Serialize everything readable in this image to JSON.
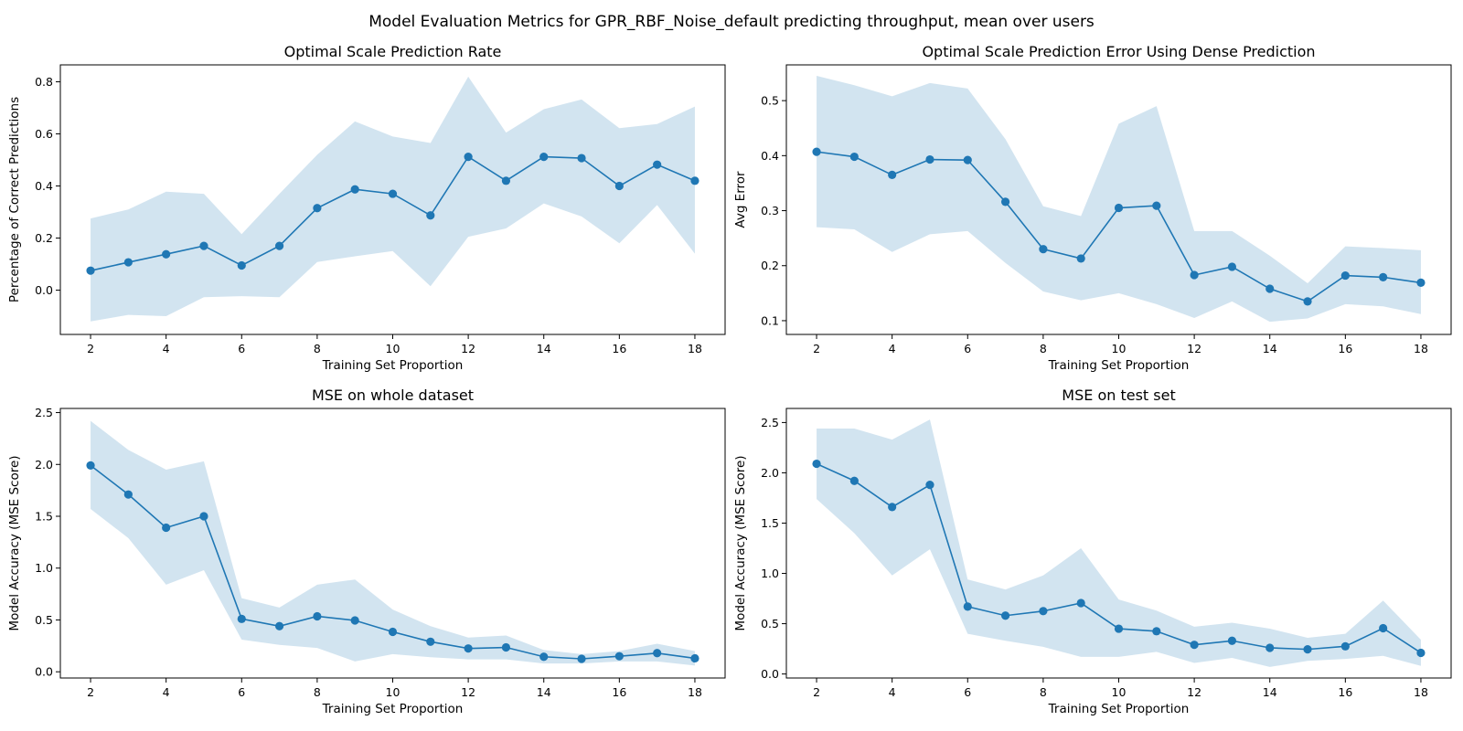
{
  "figure": {
    "suptitle": "Model Evaluation Metrics for GPR_RBF_Noise_default predicting throughput, mean over users"
  },
  "style": {
    "line_color": "#1f77b4",
    "band_color": "#1f77b4",
    "band_opacity": 0.2,
    "axis_color": "#000000"
  },
  "chart_data": [
    {
      "type": "line",
      "title": "Optimal Scale Prediction Rate",
      "xlabel": "Training Set Proportion",
      "ylabel": "Percentage of Correct Predictions",
      "x": [
        2,
        3,
        4,
        5,
        6,
        7,
        8,
        9,
        10,
        11,
        12,
        13,
        14,
        15,
        16,
        17,
        18
      ],
      "y": [
        0.075,
        0.107,
        0.138,
        0.17,
        0.095,
        0.17,
        0.315,
        0.387,
        0.37,
        0.287,
        0.512,
        0.42,
        0.512,
        0.507,
        0.4,
        0.482,
        0.42
      ],
      "upper": [
        0.275,
        0.31,
        0.378,
        0.37,
        0.215,
        0.37,
        0.52,
        0.648,
        0.59,
        0.565,
        0.82,
        0.605,
        0.695,
        0.732,
        0.622,
        0.638,
        0.705
      ],
      "lower": [
        -0.12,
        -0.095,
        -0.1,
        -0.027,
        -0.023,
        -0.027,
        0.108,
        0.13,
        0.15,
        0.015,
        0.205,
        0.237,
        0.333,
        0.283,
        0.18,
        0.327,
        0.14
      ],
      "xlim": [
        1.2,
        18.8
      ],
      "ylim": [
        -0.17,
        0.865
      ],
      "xticks": [
        2,
        4,
        6,
        8,
        10,
        12,
        14,
        16,
        18
      ],
      "xticklabels": [
        "2",
        "4",
        "6",
        "8",
        "10",
        "12",
        "14",
        "16",
        "18"
      ],
      "yticks": [
        0,
        0.2,
        0.4,
        0.6,
        0.8
      ],
      "yticklabels": [
        "0.0",
        "0.2",
        "0.4",
        "0.6",
        "0.8"
      ],
      "grid": false
    },
    {
      "type": "line",
      "title": "Optimal Scale Prediction Error Using Dense Prediction",
      "xlabel": "Training Set Proportion",
      "ylabel": "Avg Error",
      "x": [
        2,
        3,
        4,
        5,
        6,
        7,
        8,
        9,
        10,
        11,
        12,
        13,
        14,
        15,
        16,
        17,
        18
      ],
      "y": [
        0.407,
        0.398,
        0.365,
        0.393,
        0.392,
        0.316,
        0.23,
        0.213,
        0.305,
        0.309,
        0.183,
        0.198,
        0.158,
        0.135,
        0.182,
        0.179,
        0.169
      ],
      "upper": [
        0.545,
        0.528,
        0.508,
        0.532,
        0.522,
        0.43,
        0.308,
        0.29,
        0.458,
        0.49,
        0.263,
        0.263,
        0.218,
        0.168,
        0.235,
        0.232,
        0.228
      ],
      "lower": [
        0.27,
        0.266,
        0.225,
        0.257,
        0.263,
        0.205,
        0.153,
        0.137,
        0.15,
        0.13,
        0.105,
        0.135,
        0.098,
        0.104,
        0.13,
        0.126,
        0.112
      ],
      "xlim": [
        1.2,
        18.8
      ],
      "ylim": [
        0.075,
        0.565
      ],
      "xticks": [
        2,
        4,
        6,
        8,
        10,
        12,
        14,
        16,
        18
      ],
      "xticklabels": [
        "2",
        "4",
        "6",
        "8",
        "10",
        "12",
        "14",
        "16",
        "18"
      ],
      "yticks": [
        0.1,
        0.2,
        0.3,
        0.4,
        0.5
      ],
      "yticklabels": [
        "0.1",
        "0.2",
        "0.3",
        "0.4",
        "0.5"
      ],
      "grid": false
    },
    {
      "type": "line",
      "title": "MSE on whole dataset",
      "xlabel": "Training Set Proportion",
      "ylabel": "Model Accuracy (MSE Score)",
      "x": [
        2,
        3,
        4,
        5,
        6,
        7,
        8,
        9,
        10,
        11,
        12,
        13,
        14,
        15,
        16,
        17,
        18
      ],
      "y": [
        1.99,
        1.71,
        1.39,
        1.5,
        0.51,
        0.44,
        0.535,
        0.495,
        0.385,
        0.29,
        0.225,
        0.235,
        0.145,
        0.125,
        0.15,
        0.18,
        0.13
      ],
      "upper": [
        2.42,
        2.14,
        1.95,
        2.03,
        0.71,
        0.62,
        0.84,
        0.89,
        0.6,
        0.44,
        0.33,
        0.35,
        0.21,
        0.17,
        0.2,
        0.27,
        0.2
      ],
      "lower": [
        1.57,
        1.29,
        0.84,
        0.98,
        0.31,
        0.26,
        0.23,
        0.1,
        0.17,
        0.14,
        0.12,
        0.12,
        0.08,
        0.08,
        0.1,
        0.1,
        0.06
      ],
      "xlim": [
        1.2,
        18.8
      ],
      "ylim": [
        -0.06,
        2.54
      ],
      "xticks": [
        2,
        4,
        6,
        8,
        10,
        12,
        14,
        16,
        18
      ],
      "xticklabels": [
        "2",
        "4",
        "6",
        "8",
        "10",
        "12",
        "14",
        "16",
        "18"
      ],
      "yticks": [
        0,
        0.5,
        1,
        1.5,
        2,
        2.5
      ],
      "yticklabels": [
        "0.0",
        "0.5",
        "1.0",
        "1.5",
        "2.0",
        "2.5"
      ],
      "grid": false
    },
    {
      "type": "line",
      "title": "MSE on test set",
      "xlabel": "Training Set Proportion",
      "ylabel": "Model Accuracy (MSE Score)",
      "x": [
        2,
        3,
        4,
        5,
        6,
        7,
        8,
        9,
        10,
        11,
        12,
        13,
        14,
        15,
        16,
        17,
        18
      ],
      "y": [
        2.09,
        1.92,
        1.66,
        1.88,
        0.67,
        0.58,
        0.625,
        0.705,
        0.45,
        0.425,
        0.29,
        0.33,
        0.26,
        0.245,
        0.275,
        0.455,
        0.21
      ],
      "upper": [
        2.44,
        2.44,
        2.33,
        2.53,
        0.94,
        0.84,
        0.98,
        1.25,
        0.74,
        0.63,
        0.47,
        0.51,
        0.45,
        0.36,
        0.4,
        0.73,
        0.34
      ],
      "lower": [
        1.74,
        1.4,
        0.98,
        1.24,
        0.4,
        0.33,
        0.27,
        0.17,
        0.17,
        0.22,
        0.11,
        0.16,
        0.07,
        0.13,
        0.15,
        0.18,
        0.08
      ],
      "xlim": [
        1.2,
        18.8
      ],
      "ylim": [
        -0.04,
        2.64
      ],
      "xticks": [
        2,
        4,
        6,
        8,
        10,
        12,
        14,
        16,
        18
      ],
      "xticklabels": [
        "2",
        "4",
        "6",
        "8",
        "10",
        "12",
        "14",
        "16",
        "18"
      ],
      "yticks": [
        0,
        0.5,
        1,
        1.5,
        2,
        2.5
      ],
      "yticklabels": [
        "0.0",
        "0.5",
        "1.0",
        "1.5",
        "2.0",
        "2.5"
      ],
      "grid": false
    }
  ]
}
